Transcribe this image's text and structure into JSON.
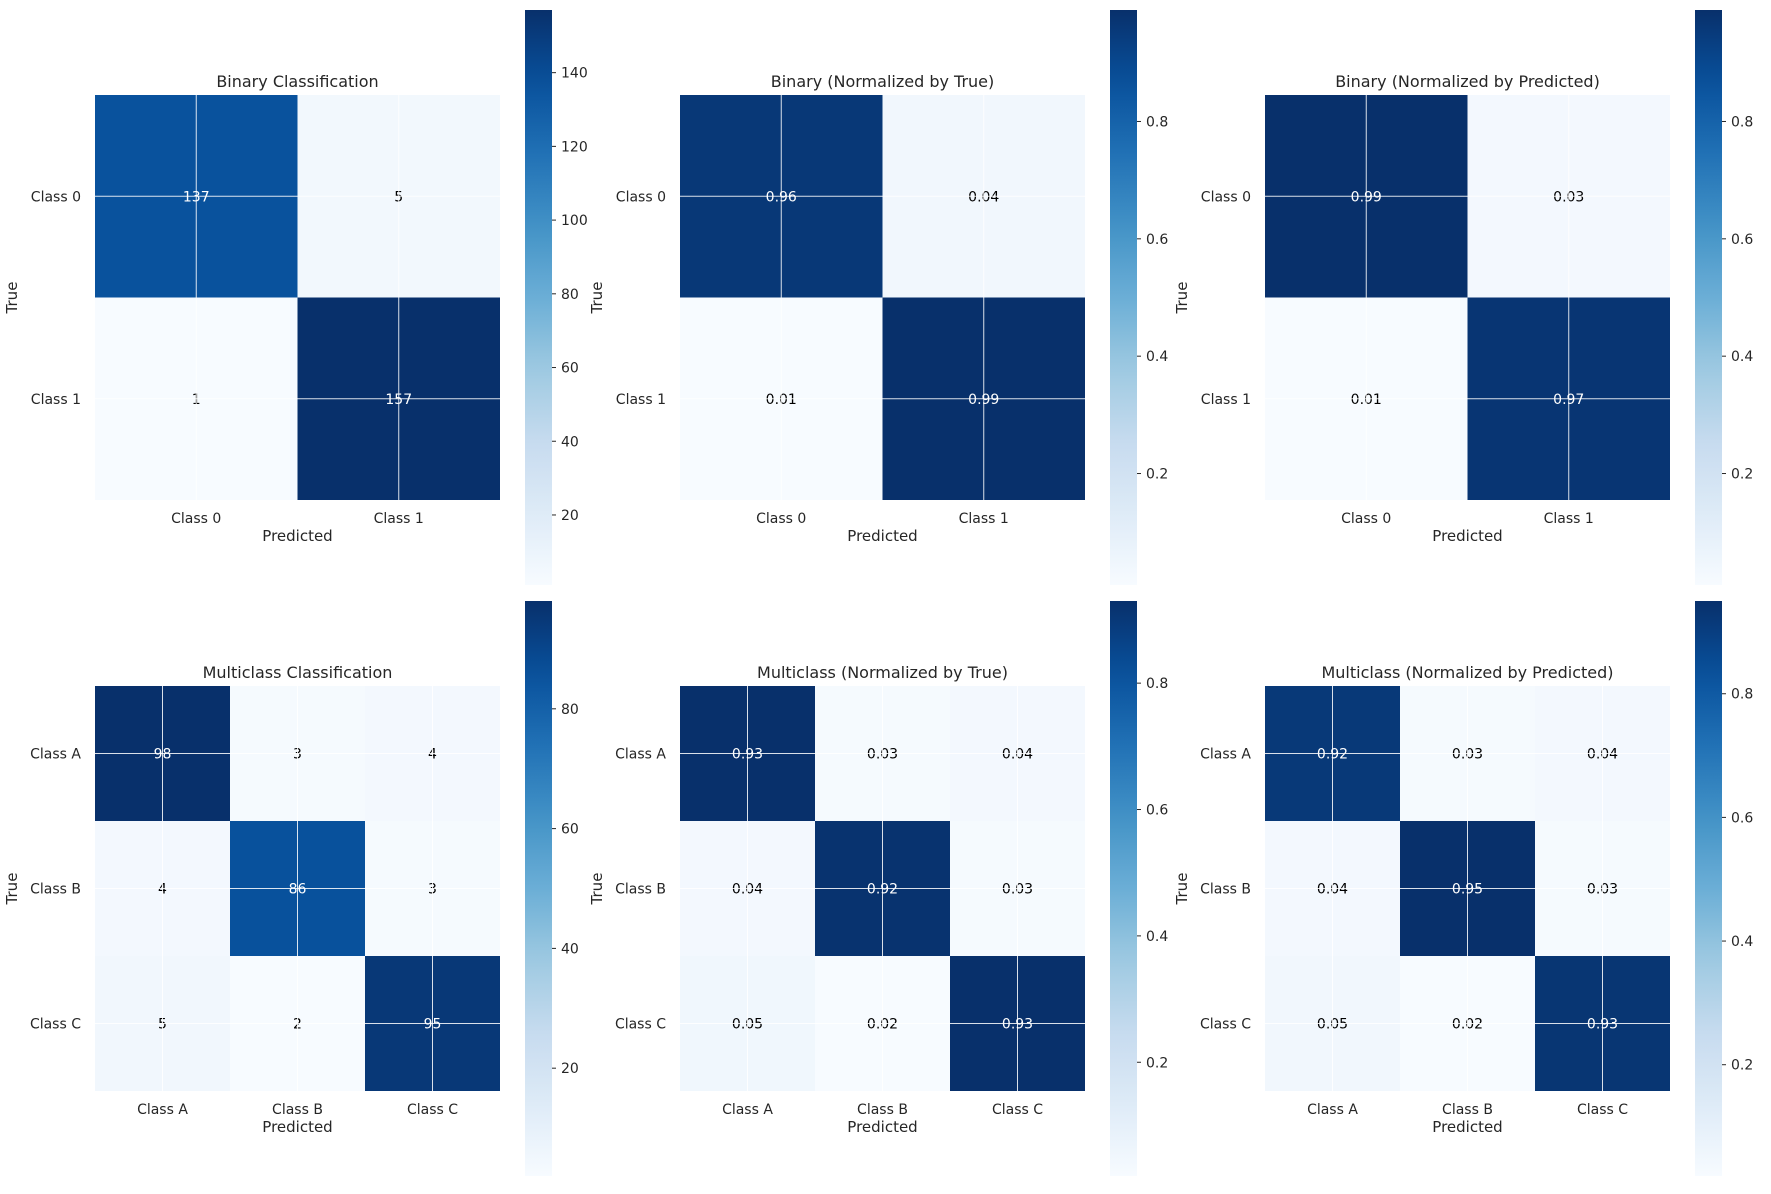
{
  "chart_data": [
    {
      "type": "heatmap",
      "title": "Binary Classification",
      "xlabel": "Predicted",
      "ylabel": "True",
      "x_categories": [
        "Class 0",
        "Class 1"
      ],
      "y_categories": [
        "Class 0",
        "Class 1"
      ],
      "values": [
        [
          137,
          5
        ],
        [
          1,
          157
        ]
      ],
      "value_labels": [
        [
          "137",
          "5"
        ],
        [
          "1",
          "157"
        ]
      ],
      "colormap": "Blues",
      "vmin": 1,
      "vmax": 157,
      "colorbar_ticks": [
        20,
        40,
        60,
        80,
        100,
        120,
        140
      ]
    },
    {
      "type": "heatmap",
      "title": "Binary (Normalized by True)",
      "xlabel": "Predicted",
      "ylabel": "True",
      "x_categories": [
        "Class 0",
        "Class 1"
      ],
      "y_categories": [
        "Class 0",
        "Class 1"
      ],
      "values": [
        [
          0.96,
          0.04
        ],
        [
          0.01,
          0.99
        ]
      ],
      "value_labels": [
        [
          "0.96",
          "0.04"
        ],
        [
          "0.01",
          "0.99"
        ]
      ],
      "colormap": "Blues",
      "vmin": 0.01,
      "vmax": 0.99,
      "colorbar_ticks": [
        0.2,
        0.4,
        0.6,
        0.8
      ]
    },
    {
      "type": "heatmap",
      "title": "Binary (Normalized by Predicted)",
      "xlabel": "Predicted",
      "ylabel": "True",
      "x_categories": [
        "Class 0",
        "Class 1"
      ],
      "y_categories": [
        "Class 0",
        "Class 1"
      ],
      "values": [
        [
          0.99,
          0.03
        ],
        [
          0.01,
          0.97
        ]
      ],
      "value_labels": [
        [
          "0.99",
          "0.03"
        ],
        [
          "0.01",
          "0.97"
        ]
      ],
      "colormap": "Blues",
      "vmin": 0.01,
      "vmax": 0.99,
      "colorbar_ticks": [
        0.2,
        0.4,
        0.6,
        0.8
      ]
    },
    {
      "type": "heatmap",
      "title": "Multiclass Classification",
      "xlabel": "Predicted",
      "ylabel": "True",
      "x_categories": [
        "Class A",
        "Class B",
        "Class C"
      ],
      "y_categories": [
        "Class A",
        "Class B",
        "Class C"
      ],
      "values": [
        [
          98,
          3,
          4
        ],
        [
          4,
          86,
          3
        ],
        [
          5,
          2,
          95
        ]
      ],
      "value_labels": [
        [
          "98",
          "3",
          "4"
        ],
        [
          "4",
          "86",
          "3"
        ],
        [
          "5",
          "2",
          "95"
        ]
      ],
      "colormap": "Blues",
      "vmin": 2,
      "vmax": 98,
      "colorbar_ticks": [
        20,
        40,
        60,
        80
      ]
    },
    {
      "type": "heatmap",
      "title": "Multiclass (Normalized by True)",
      "xlabel": "Predicted",
      "ylabel": "True",
      "x_categories": [
        "Class A",
        "Class B",
        "Class C"
      ],
      "y_categories": [
        "Class A",
        "Class B",
        "Class C"
      ],
      "values": [
        [
          0.93,
          0.03,
          0.04
        ],
        [
          0.04,
          0.92,
          0.03
        ],
        [
          0.05,
          0.02,
          0.93
        ]
      ],
      "value_labels": [
        [
          "0.93",
          "0.03",
          "0.04"
        ],
        [
          "0.04",
          "0.92",
          "0.03"
        ],
        [
          "0.05",
          "0.02",
          "0.93"
        ]
      ],
      "colormap": "Blues",
      "vmin": 0.02,
      "vmax": 0.93,
      "colorbar_ticks": [
        0.2,
        0.4,
        0.6,
        0.8
      ]
    },
    {
      "type": "heatmap",
      "title": "Multiclass (Normalized by Predicted)",
      "xlabel": "Predicted",
      "ylabel": "True",
      "x_categories": [
        "Class A",
        "Class B",
        "Class C"
      ],
      "y_categories": [
        "Class A",
        "Class B",
        "Class C"
      ],
      "values": [
        [
          0.92,
          0.03,
          0.04
        ],
        [
          0.04,
          0.95,
          0.03
        ],
        [
          0.05,
          0.02,
          0.93
        ]
      ],
      "value_labels": [
        [
          "0.92",
          "0.03",
          "0.04"
        ],
        [
          "0.04",
          "0.95",
          "0.03"
        ],
        [
          "0.05",
          "0.02",
          "0.93"
        ]
      ],
      "colormap": "Blues",
      "vmin": 0.02,
      "vmax": 0.95,
      "colorbar_ticks": [
        0.2,
        0.4,
        0.6,
        0.8
      ]
    }
  ]
}
